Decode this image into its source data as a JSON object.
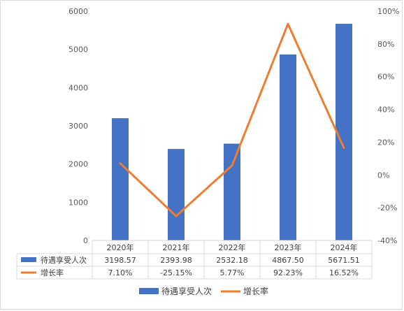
{
  "chart_data": {
    "type": "bar",
    "categories": [
      "2020年",
      "2021年",
      "2022年",
      "2023年",
      "2024年"
    ],
    "series": [
      {
        "name": "待遇享受人次",
        "type": "bar",
        "axis": "left",
        "color": "#4472C4",
        "values": [
          3198.57,
          2393.98,
          2532.18,
          4867.5,
          5671.51
        ],
        "labels": [
          "3198.57",
          "2393.98",
          "2532.18",
          "4867.50",
          "5671.51"
        ]
      },
      {
        "name": "增长率",
        "type": "line",
        "axis": "right",
        "color": "#ED7D31",
        "values": [
          7.1,
          -25.15,
          5.77,
          92.23,
          16.52
        ],
        "labels": [
          "7.10%",
          "-25.15%",
          "5.77%",
          "92.23%",
          "16.52%"
        ]
      }
    ],
    "y_left": {
      "ylim": [
        0,
        6000
      ],
      "ticks": [
        "0",
        "1000",
        "2000",
        "3000",
        "4000",
        "5000",
        "6000"
      ]
    },
    "y_right": {
      "ylim": [
        -40,
        100
      ],
      "unit": "%",
      "ticks": [
        "-40%",
        "-20%",
        "0%",
        "20%",
        "40%",
        "60%",
        "80%",
        "100%"
      ]
    },
    "data_table": true,
    "legend_position": "bottom",
    "grid": false
  }
}
